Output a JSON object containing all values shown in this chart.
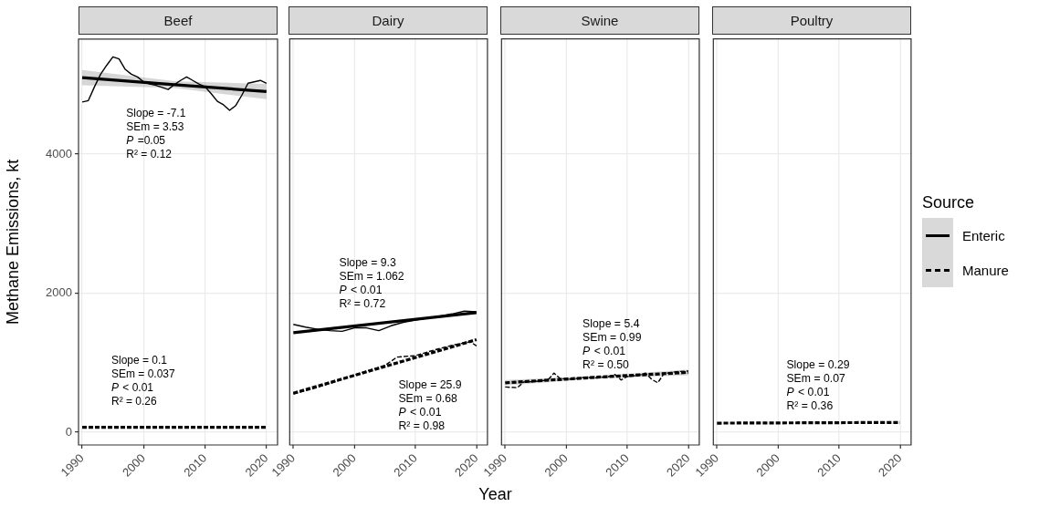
{
  "chart_data": [
    {
      "type": "line",
      "title": "Beef",
      "ylabel": "Methane Emissions, kt",
      "xlim": [
        1989.4,
        2021.8
      ],
      "xticks": [
        1990,
        2000,
        2010,
        2020
      ],
      "ylim": [
        -184,
        5656
      ],
      "yticks": [
        0,
        2000,
        4000
      ],
      "grid": true,
      "legend": "right",
      "legend_title": "Source",
      "series": [
        {
          "color": "#000000",
          "line_style": "solid",
          "x": [
            1990,
            1991,
            1992,
            1993,
            1994,
            1995,
            1996,
            1997,
            1998,
            1999,
            2000,
            2001,
            2002,
            2003,
            2004,
            2005,
            2006,
            2007,
            2008,
            2009,
            2010,
            2011,
            2012,
            2013,
            2014,
            2015,
            2016,
            2017,
            2018,
            2019,
            2020
          ],
          "values": [
            4750,
            4770,
            4970,
            5150,
            5280,
            5400,
            5370,
            5220,
            5150,
            5110,
            5040,
            5010,
            4990,
            4960,
            4930,
            5000,
            5060,
            5110,
            5060,
            5010,
            4970,
            4870,
            4760,
            4710,
            4630,
            4700,
            4850,
            5020,
            5040,
            5060,
            5020
          ]
        },
        {
          "name": "Enteric",
          "color": "#000000",
          "line_style": "solid",
          "x": [
            1990,
            2005,
            2020
          ],
          "values": [
            5100,
            5000,
            4900
          ],
          "lower": [
            4990,
            4950,
            4790
          ],
          "upper": [
            5210,
            5050,
            5010
          ]
        },
        {
          "name": "Manure",
          "color": "#000000",
          "line_style": "dashed",
          "x": [
            1990,
            2020
          ],
          "values": [
            70,
            70
          ]
        }
      ],
      "annotations": [
        "Slope = -7.1\nSEm = 3.53\nP =0.05\nR² = 0.12",
        "Slope = 0.1\nSEm = 0.037\nP < 0.01\nR² = 0.26"
      ]
    },
    {
      "type": "line",
      "title": "Dairy",
      "xlabel": "Year",
      "xlim": [
        1989.4,
        2021.8
      ],
      "xticks": [
        1990,
        2000,
        2010,
        2020
      ],
      "ylim": [
        -184,
        5656
      ],
      "yticks": [
        0,
        2000,
        4000
      ],
      "grid": true,
      "tick_labels": "x",
      "series": [
        {
          "color": "#000000",
          "line_style": "solid",
          "x": [
            1990,
            1992,
            1994,
            1996,
            1998,
            2000,
            2002,
            2004,
            2006,
            2008,
            2010,
            2012,
            2014,
            2016,
            2018,
            2020
          ],
          "values": [
            1550,
            1510,
            1480,
            1460,
            1450,
            1500,
            1500,
            1460,
            1530,
            1580,
            1610,
            1640,
            1670,
            1700,
            1740,
            1730
          ]
        },
        {
          "color": "#000000",
          "line_style": "solid",
          "x": [
            1990,
            2020
          ],
          "values": [
            1430,
            1720
          ]
        },
        {
          "color": "#000000",
          "line_style": "dashed",
          "x": [
            1990,
            1993,
            1996,
            1999,
            2002,
            2005,
            2007,
            2010,
            2013,
            2016,
            2019,
            2020
          ],
          "values": [
            550,
            620,
            700,
            790,
            880,
            960,
            1080,
            1100,
            1180,
            1250,
            1300,
            1240
          ]
        },
        {
          "color": "#000000",
          "line_style": "dashed",
          "x": [
            1990,
            2020
          ],
          "values": [
            560,
            1330
          ]
        }
      ],
      "annotations": [
        "Slope = 9.3\nSEm = 1.062\nP < 0.01\nR² = 0.72",
        "Slope = 25.9\nSEm = 0.68\nP < 0.01\nR² = 0.98"
      ]
    },
    {
      "type": "line",
      "title": "Swine",
      "xlim": [
        1989.4,
        2021.8
      ],
      "xticks": [
        1990,
        2000,
        2010,
        2020
      ],
      "ylim": [
        -184,
        5656
      ],
      "yticks": [
        0,
        2000,
        4000
      ],
      "grid": true,
      "tick_labels": "x",
      "series": [
        {
          "color": "#000000",
          "line_style": "dashed",
          "x": [
            1990,
            1992,
            1993,
            1995,
            1997,
            1998,
            1999,
            2001,
            2003,
            2005,
            2007,
            2008,
            2009,
            2010,
            2012,
            2013,
            2014,
            2015,
            2016,
            2018,
            2020
          ],
          "values": [
            650,
            640,
            720,
            730,
            750,
            850,
            770,
            760,
            790,
            780,
            800,
            830,
            750,
            800,
            820,
            850,
            760,
            710,
            840,
            870,
            880
          ]
        },
        {
          "color": "#000000",
          "line_style": "dashed",
          "x": [
            1990,
            2005,
            2020
          ],
          "values": [
            710,
            790,
            860
          ],
          "lower": [
            670,
            770,
            820
          ],
          "upper": [
            750,
            810,
            900
          ]
        }
      ],
      "annotations": [
        "Slope = 5.4\nSEm = 0.99\nP < 0.01\nR² = 0.50"
      ]
    },
    {
      "type": "line",
      "title": "Poultry",
      "xlim": [
        1989.4,
        2021.8
      ],
      "xticks": [
        1990,
        2000,
        2010,
        2020
      ],
      "ylim": [
        -184,
        5656
      ],
      "yticks": [
        0,
        2000,
        4000
      ],
      "grid": true,
      "tick_labels": "x",
      "series": [
        {
          "color": "#000000",
          "line_style": "dashed",
          "x": [
            1990,
            2020
          ],
          "values": [
            130,
            140
          ]
        }
      ],
      "annotations": [
        "Slope = 0.29\nSEm = 0.07\nP < 0.01\nR² = 0.36"
      ]
    }
  ]
}
